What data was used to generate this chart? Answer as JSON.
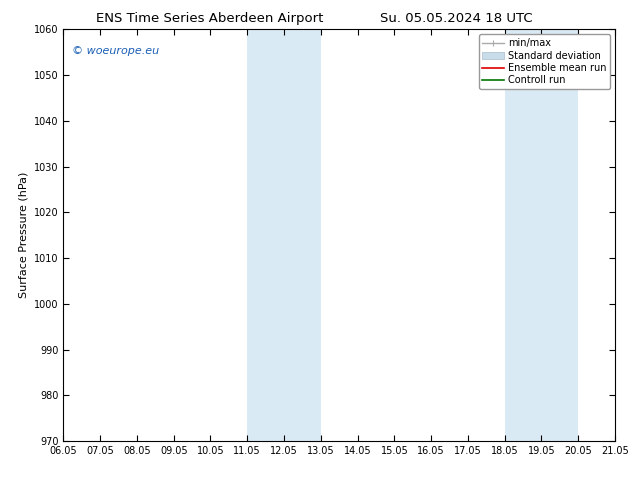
{
  "title": "ENS Time Series Aberdeen Airport",
  "title2": "Su. 05.05.2024 18 UTC",
  "ylabel": "Surface Pressure (hPa)",
  "ylim": [
    970,
    1060
  ],
  "yticks": [
    970,
    980,
    990,
    1000,
    1010,
    1020,
    1030,
    1040,
    1050,
    1060
  ],
  "xtick_labels": [
    "06.05",
    "07.05",
    "08.05",
    "09.05",
    "10.05",
    "11.05",
    "12.05",
    "13.05",
    "14.05",
    "15.05",
    "16.05",
    "17.05",
    "18.05",
    "19.05",
    "20.05",
    "21.05"
  ],
  "xlim_start": 0,
  "xlim_end": 15,
  "shaded_bands": [
    {
      "x_start": 5,
      "x_end": 7
    },
    {
      "x_start": 12,
      "x_end": 14
    }
  ],
  "shaded_color": "#daeaf5",
  "background_color": "#ffffff",
  "watermark_text": "© woeurope.eu",
  "watermark_color": "#1a5fb4",
  "legend_entries": [
    {
      "label": "min/max"
    },
    {
      "label": "Standard deviation"
    },
    {
      "label": "Ensemble mean run"
    },
    {
      "label": "Controll run"
    }
  ],
  "minmax_color": "#aaaaaa",
  "stddev_color": "#c8dcea",
  "stddev_edge_color": "#aabbcc",
  "ensemble_color": "#dd0000",
  "control_color": "#007700",
  "tick_fontsize": 7,
  "label_fontsize": 8,
  "title_fontsize": 9.5,
  "legend_fontsize": 7,
  "watermark_fontsize": 8
}
